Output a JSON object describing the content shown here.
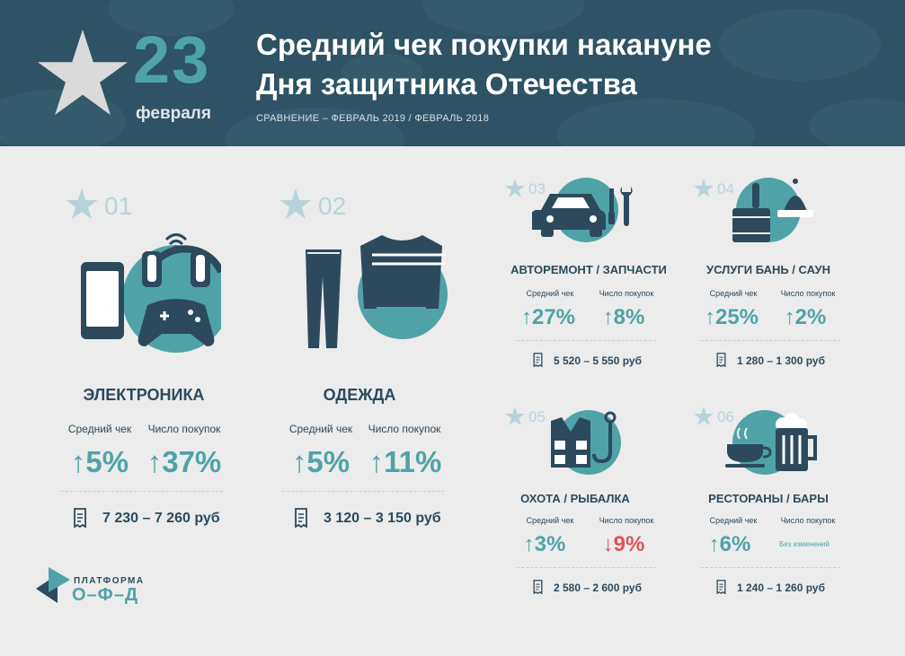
{
  "header": {
    "day": "23",
    "month": "февраля",
    "title_line1": "Средний чек покупки накануне",
    "title_line2": "Дня защитника Отечества",
    "subtitle": "СРАВНЕНИЕ – ФЕВРАЛЬ 2019 / ФЕВРАЛЬ 2018"
  },
  "labels": {
    "avg_check": "Средний чек",
    "purchases": "Число покупок",
    "arrow_up": "↑",
    "arrow_down": "↓"
  },
  "categories": [
    {
      "num": "01",
      "title": "ЭЛЕКТРОНИКА",
      "avg": "5%",
      "count": "37%",
      "price": "7 230 – 7 260 руб"
    },
    {
      "num": "02",
      "title": "ОДЕЖДА",
      "avg": "5%",
      "count": "11%",
      "price": "3 120 – 3 150 руб"
    },
    {
      "num": "03",
      "title": "АВТОРЕМОНТ / ЗАПЧАСТИ",
      "avg": "27%",
      "count": "8%",
      "price": "5 520 – 5 550 руб"
    },
    {
      "num": "04",
      "title": "УСЛУГИ БАНЬ / САУН",
      "avg": "25%",
      "count": "2%",
      "price": "1 280 – 1 300 руб"
    },
    {
      "num": "05",
      "title": "ОХОТА / РЫБАЛКА",
      "avg": "3%",
      "count": "9%",
      "price": "2 580 – 2 600 руб"
    },
    {
      "num": "06",
      "title": "РЕСТОРАНЫ / БАРЫ",
      "avg": "6%",
      "count_text": "Без изменений",
      "price": "1 240 – 1 260 руб"
    }
  ],
  "logo": {
    "line1": "ПЛАТФОРМА",
    "line2": "О–Ф–Д"
  },
  "colors": {
    "dark": "#2c4a5c",
    "teal": "#4fa3a6",
    "red": "#e0515b",
    "light": "#b7d3da",
    "header_bg": "#2d5364"
  }
}
